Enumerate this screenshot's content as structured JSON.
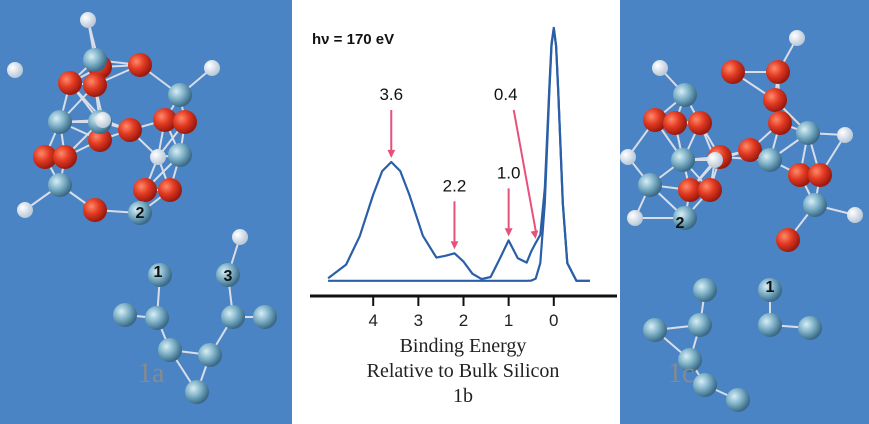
{
  "chart_data": {
    "type": "line",
    "title": "hν = 170 eV",
    "xlabel": [
      "Binding Energy",
      "Relative to Bulk Silicon"
    ],
    "panel_label": "1b",
    "x": [
      5.0,
      4.6,
      4.3,
      4.0,
      3.8,
      3.6,
      3.4,
      3.2,
      2.9,
      2.6,
      2.4,
      2.2,
      2.0,
      1.8,
      1.6,
      1.4,
      1.2,
      1.0,
      0.8,
      0.6,
      0.5,
      0.4,
      0.3,
      0.2,
      0.1,
      0.05,
      0,
      -0.05,
      -0.1,
      -0.2,
      -0.3,
      -0.5,
      -0.8
    ],
    "series": [
      {
        "color": "#2a5fa8",
        "values": [
          1,
          6.4,
          17.6,
          34.1,
          43.4,
          47,
          43.4,
          34.1,
          17.8,
          9.2,
          9.9,
          10.9,
          7.6,
          2.8,
          0.7,
          1.5,
          8.6,
          16,
          9.0,
          7.2,
          11.6,
          15,
          18.2,
          36.5,
          76.3,
          93.8,
          100,
          92.9,
          74.4,
          30.7,
          7,
          0,
          0
        ]
      },
      {
        "color": "#2a5fa8",
        "values": [
          0,
          0,
          0,
          0,
          0,
          0,
          0,
          0,
          0,
          0,
          0,
          0,
          0,
          0,
          0,
          0,
          0,
          0,
          0,
          0,
          0.1,
          0.9,
          7,
          30.7,
          74.4,
          92.9,
          100,
          92.9,
          74.4,
          30.7,
          7,
          0,
          0
        ]
      }
    ],
    "annotations": [
      {
        "text": "3.6",
        "x": 3.6,
        "y": 47
      },
      {
        "text": "2.2",
        "x": 2.2,
        "y": 10.9
      },
      {
        "text": "1.0",
        "x": 1.0,
        "y": 16
      },
      {
        "text": "0.4",
        "x": 0.4,
        "y": 15
      }
    ],
    "arrow_color": "#e8507c",
    "xlim": [
      5.4,
      -1.4
    ],
    "ylim": [
      -6,
      100
    ],
    "xticks": [
      4,
      3,
      2,
      1,
      0
    ]
  },
  "panels": [
    {
      "label": "1a",
      "atom_labels": [
        "2",
        "1",
        "3"
      ]
    },
    {
      "label": "1c",
      "atom_labels": [
        "2",
        "1"
      ]
    }
  ]
}
